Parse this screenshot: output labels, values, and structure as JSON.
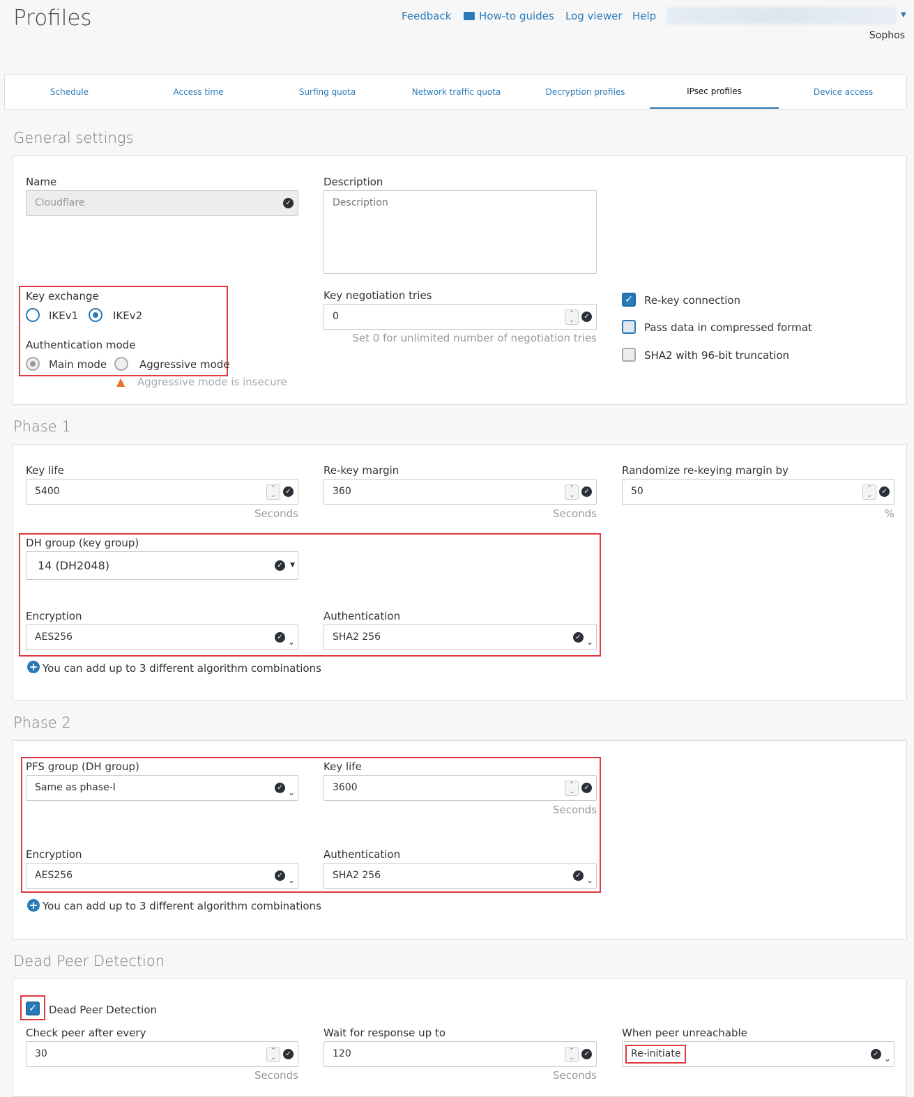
{
  "header": {
    "title": "Profiles",
    "links": [
      "Feedback",
      "How-to guides",
      "Log viewer",
      "Help"
    ],
    "org": "Sophos"
  },
  "tabs": [
    "Schedule",
    "Access time",
    "Surfing quota",
    "Network traffic quota",
    "Decryption profiles",
    "IPsec profiles",
    "Device access"
  ],
  "active_tab": "IPsec profiles",
  "general": {
    "heading": "General settings",
    "name_label": "Name",
    "name_value": "Cloudflare",
    "desc_label": "Description",
    "desc_placeholder": "Description",
    "key_exchange_label": "Key exchange",
    "ikev1": "IKEv1",
    "ikev2": "IKEv2",
    "key_exchange_selected": "IKEv2",
    "auth_mode_label": "Authentication mode",
    "main_mode": "Main mode",
    "aggressive_mode": "Aggressive mode",
    "auth_mode_selected": "Main mode",
    "aggressive_warning": "Aggressive mode is insecure",
    "neg_tries_label": "Key negotiation tries",
    "neg_tries_value": "0",
    "neg_tries_hint": "Set 0 for unlimited number of negotiation tries",
    "rekey": "Re-key connection",
    "rekey_checked": true,
    "compress": "Pass data in compressed format",
    "compress_checked": true,
    "sha2": "SHA2 with 96-bit truncation",
    "sha2_checked": false
  },
  "phase1": {
    "heading": "Phase 1",
    "keylife_label": "Key life",
    "keylife_value": "5400",
    "keylife_unit": "Seconds",
    "rekey_margin_label": "Re-key margin",
    "rekey_margin_value": "360",
    "rekey_margin_unit": "Seconds",
    "random_label": "Randomize re-keying margin by",
    "random_value": "50",
    "random_unit": "%",
    "dh_label": "DH group (key group)",
    "dh_value": "14 (DH2048)",
    "enc_label": "Encryption",
    "enc_value": "AES256",
    "auth_label": "Authentication",
    "auth_value": "SHA2 256",
    "add_text": "You can add up to 3 different algorithm combinations"
  },
  "phase2": {
    "heading": "Phase 2",
    "pfs_label": "PFS group (DH group)",
    "pfs_value": "Same as phase-I",
    "keylife_label": "Key life",
    "keylife_value": "3600",
    "keylife_unit": "Seconds",
    "enc_label": "Encryption",
    "enc_value": "AES256",
    "auth_label": "Authentication",
    "auth_value": "SHA2 256",
    "add_text": "You can add up to 3 different algorithm combinations"
  },
  "dpd": {
    "heading": "Dead Peer Detection",
    "checkbox_label": "Dead Peer Detection",
    "checked": true,
    "check_label": "Check peer after every",
    "check_value": "30",
    "check_unit": "Seconds",
    "wait_label": "Wait for response up to",
    "wait_value": "120",
    "wait_unit": "Seconds",
    "unreach_label": "When peer unreachable",
    "unreach_value": "Re-initiate"
  }
}
